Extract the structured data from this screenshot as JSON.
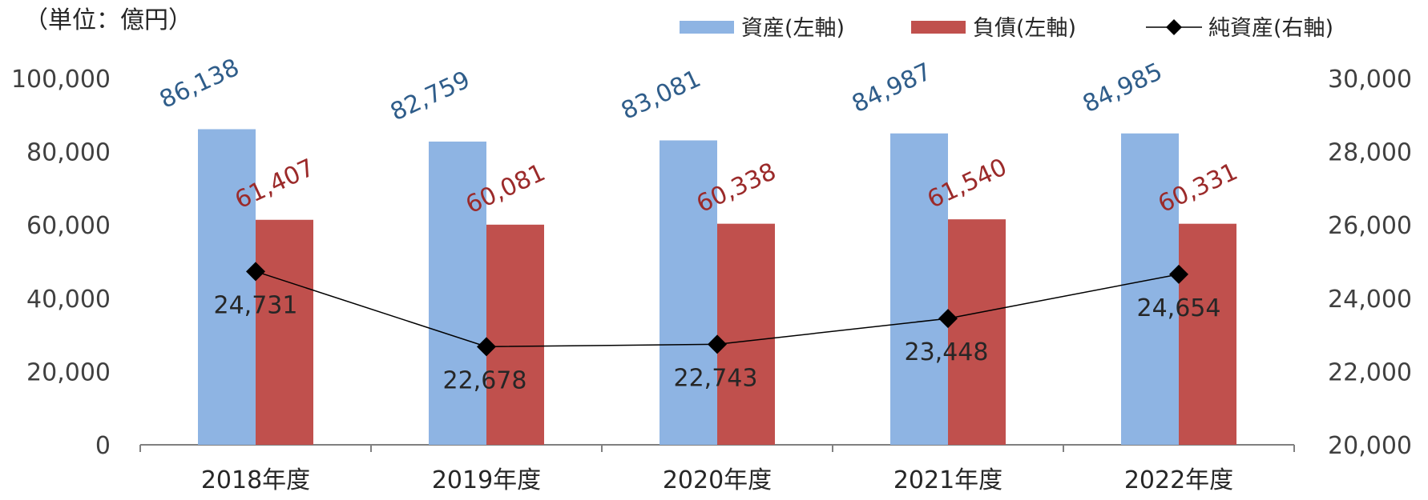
{
  "unit_label": "（単位：億円）",
  "colors": {
    "assets": "#8EB4E3",
    "liabilities": "#C0504D",
    "net_assets": "#000000",
    "axis": "#808080",
    "asset_label": "#2F5D8A",
    "liability_label": "#9B2A2A"
  },
  "chart_data": {
    "type": "bar",
    "title": "",
    "categories": [
      "2018年度",
      "2019年度",
      "2020年度",
      "2021年度",
      "2022年度"
    ],
    "series": [
      {
        "key": "assets",
        "name": "資産(左軸)",
        "type": "bar",
        "axis": "left",
        "values": [
          86138,
          82759,
          83081,
          84987,
          84985
        ],
        "labels": [
          "86,138",
          "82,759",
          "83,081",
          "84,987",
          "84,985"
        ]
      },
      {
        "key": "liabilities",
        "name": "負債(左軸)",
        "type": "bar",
        "axis": "left",
        "values": [
          61407,
          60081,
          60338,
          61540,
          60331
        ],
        "labels": [
          "61,407",
          "60,081",
          "60,338",
          "61,540",
          "60,331"
        ]
      },
      {
        "key": "net_assets",
        "name": "純資産(右軸)",
        "type": "line",
        "axis": "right",
        "marker": "diamond",
        "values": [
          24731,
          22678,
          22743,
          23448,
          24654
        ],
        "labels": [
          "24,731",
          "22,678",
          "22,743",
          "23,448",
          "24,654"
        ]
      }
    ],
    "y_left": {
      "range": [
        0,
        100000
      ],
      "ticks": [
        "0",
        "20,000",
        "40,000",
        "60,000",
        "80,000",
        "100,000"
      ]
    },
    "y_right": {
      "range": [
        20000,
        30000
      ],
      "ticks": [
        "20,000",
        "22,000",
        "24,000",
        "26,000",
        "28,000",
        "30,000"
      ]
    },
    "grid": false,
    "legend": "top-right"
  }
}
